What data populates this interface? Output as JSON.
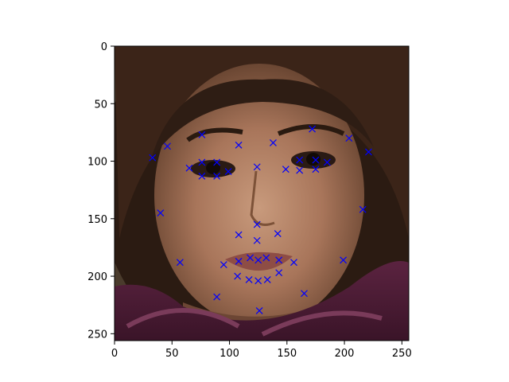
{
  "chart_data": {
    "type": "scatter",
    "background": "image: cropped face photo (woman with dark hair, purple scarf)",
    "marker": "x",
    "marker_color": "#0000ff",
    "xlim": [
      0,
      256
    ],
    "ylim": [
      256,
      0
    ],
    "x_ticks": [
      0,
      50,
      100,
      150,
      200,
      250
    ],
    "y_ticks": [
      0,
      50,
      100,
      150,
      200,
      250
    ],
    "points": [
      {
        "x": 33,
        "y": 97
      },
      {
        "x": 46,
        "y": 87
      },
      {
        "x": 40,
        "y": 145
      },
      {
        "x": 57,
        "y": 188
      },
      {
        "x": 89,
        "y": 218
      },
      {
        "x": 126,
        "y": 230
      },
      {
        "x": 165,
        "y": 215
      },
      {
        "x": 199,
        "y": 186
      },
      {
        "x": 216,
        "y": 142
      },
      {
        "x": 221,
        "y": 92
      },
      {
        "x": 204,
        "y": 80
      },
      {
        "x": 76,
        "y": 77
      },
      {
        "x": 108,
        "y": 86
      },
      {
        "x": 138,
        "y": 84
      },
      {
        "x": 172,
        "y": 72
      },
      {
        "x": 65,
        "y": 106
      },
      {
        "x": 76,
        "y": 101
      },
      {
        "x": 89,
        "y": 101
      },
      {
        "x": 99,
        "y": 109
      },
      {
        "x": 89,
        "y": 113
      },
      {
        "x": 76,
        "y": 113
      },
      {
        "x": 149,
        "y": 107
      },
      {
        "x": 161,
        "y": 99
      },
      {
        "x": 175,
        "y": 99
      },
      {
        "x": 185,
        "y": 101
      },
      {
        "x": 175,
        "y": 107
      },
      {
        "x": 161,
        "y": 108
      },
      {
        "x": 124,
        "y": 105
      },
      {
        "x": 124,
        "y": 155
      },
      {
        "x": 108,
        "y": 164
      },
      {
        "x": 124,
        "y": 169
      },
      {
        "x": 142,
        "y": 163
      },
      {
        "x": 95,
        "y": 190
      },
      {
        "x": 108,
        "y": 187
      },
      {
        "x": 118,
        "y": 184
      },
      {
        "x": 125,
        "y": 186
      },
      {
        "x": 132,
        "y": 184
      },
      {
        "x": 143,
        "y": 186
      },
      {
        "x": 156,
        "y": 188
      },
      {
        "x": 143,
        "y": 197
      },
      {
        "x": 133,
        "y": 203
      },
      {
        "x": 125,
        "y": 204
      },
      {
        "x": 117,
        "y": 203
      },
      {
        "x": 107,
        "y": 200
      }
    ]
  }
}
